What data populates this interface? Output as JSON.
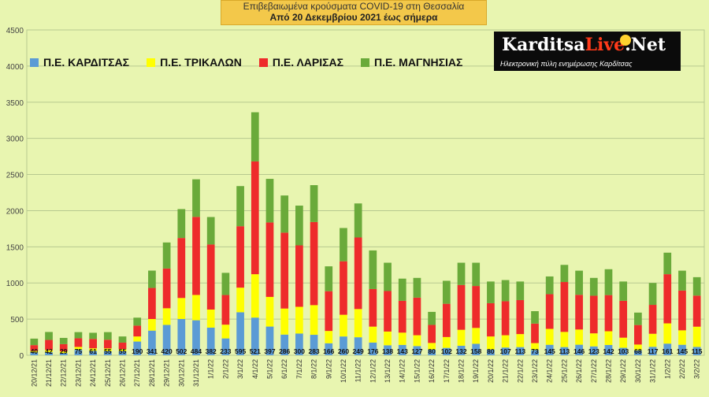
{
  "header": {
    "title_line1": "Επιβεβαιωμένα κρούσματα COVID-19 στη Θεσσαλία",
    "title_line2": "Από 20 Δεκεμβρίου 2021 έως σήμερα"
  },
  "logo": {
    "name_part1": "Karditsa",
    "name_part2": "Live",
    "name_part3": ".Net",
    "tagline": "Ηλεκτρονική πύλη ενημέρωσης Καρδίτσας"
  },
  "colors": {
    "background": "#e8f5b0",
    "karditsa": "#5b9bd5",
    "trikala": "#ffff00",
    "larisa": "#ee2b2b",
    "magnisia": "#6aaa3a",
    "grid": "#b7c98f",
    "title_bg": "#f3c84a"
  },
  "chart_data": {
    "type": "bar",
    "stacked": true,
    "ylim": [
      0,
      4500
    ],
    "yticks": [
      0,
      500,
      1000,
      1500,
      2000,
      2500,
      3000,
      3500,
      4000,
      4500
    ],
    "grid": true,
    "legend_position": "top-left",
    "categories": [
      "20/12/21",
      "21/12/21",
      "22/12/21",
      "23/12/21",
      "24/12/21",
      "25/12/21",
      "26/12/21",
      "27/12/21",
      "28/12/21",
      "29/12/21",
      "30/12/21",
      "31/12/21",
      "1/1/22",
      "2/1/22",
      "3/1/22",
      "4/1/22",
      "5/1/22",
      "6/1/22",
      "7/1/22",
      "8/1/22",
      "9/1/22",
      "10/1/22",
      "11/1/22",
      "12/1/22",
      "13/1/22",
      "14/1/22",
      "15/1/22",
      "16/1/22",
      "17/1/22",
      "18/1/22",
      "19/1/22",
      "20/1/22",
      "21/1/22",
      "22/1/22",
      "23/1/22",
      "24/1/22",
      "25/1/22",
      "26/1/22",
      "27/1/22",
      "28/1/22",
      "29/1/22",
      "30/1/22",
      "31/1/22",
      "1/2/22",
      "2/2/22",
      "3/2/22"
    ],
    "series": [
      {
        "name": "Π.Ε. ΚΑΡΔΙΤΣΑΣ",
        "color_key": "karditsa",
        "labeled": true,
        "values": [
          40,
          42,
          29,
          75,
          61,
          55,
          55,
          190,
          341,
          420,
          502,
          484,
          382,
          233,
          595,
          521,
          397,
          286,
          300,
          283,
          166,
          260,
          249,
          176,
          138,
          143,
          127,
          80,
          102,
          132,
          158,
          80,
          107,
          113,
          73,
          145,
          113,
          146,
          123,
          142,
          103,
          68,
          117,
          161,
          145,
          115
        ]
      },
      {
        "name": "Π.Ε. ΤΡΙΚΑΛΩΝ",
        "color_key": "trikala",
        "labeled": false,
        "values": [
          20,
          30,
          25,
          40,
          35,
          40,
          30,
          70,
          160,
          230,
          290,
          350,
          250,
          190,
          340,
          600,
          410,
          360,
          370,
          410,
          170,
          300,
          390,
          220,
          190,
          170,
          150,
          90,
          150,
          220,
          220,
          180,
          170,
          180,
          95,
          220,
          210,
          210,
          180,
          190,
          140,
          80,
          180,
          280,
          200,
          280
        ]
      },
      {
        "name": "Π.Ε. ΛΑΡΙΣΑΣ",
        "color_key": "larisa",
        "labeled": false,
        "values": [
          80,
          140,
          100,
          120,
          130,
          120,
          90,
          150,
          430,
          550,
          830,
          1080,
          900,
          410,
          850,
          1560,
          1030,
          1050,
          850,
          1150,
          550,
          740,
          990,
          520,
          560,
          440,
          520,
          250,
          460,
          620,
          580,
          460,
          470,
          470,
          270,
          480,
          690,
          480,
          520,
          500,
          510,
          270,
          400,
          680,
          550,
          430
        ]
      },
      {
        "name": "Π.Ε. ΜΑΓΝΗΣΙΑΣ",
        "color_key": "magnisia",
        "labeled": false,
        "values": [
          90,
          110,
          86,
          85,
          85,
          105,
          85,
          110,
          240,
          360,
          400,
          520,
          380,
          307,
          555,
          680,
          603,
          514,
          550,
          510,
          344,
          460,
          471,
          534,
          392,
          307,
          273,
          180,
          318,
          308,
          322,
          300,
          293,
          257,
          172,
          245,
          237,
          334,
          247,
          358,
          267,
          172,
          303,
          298,
          275,
          255
        ]
      }
    ]
  }
}
